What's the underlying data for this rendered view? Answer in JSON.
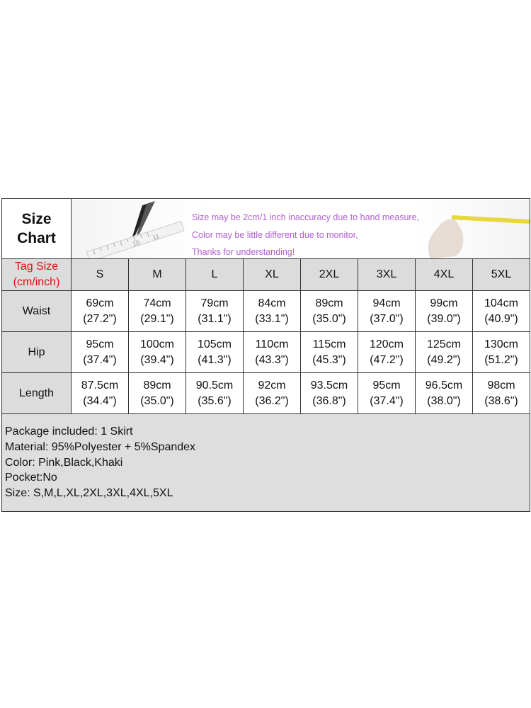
{
  "header": {
    "title_line1": "Size",
    "title_line2": "Chart",
    "notes": [
      "Size may be 2cm/1 inch inaccuracy due to hand measure,",
      "Color may be little different due to monitor,",
      "Thanks for understanding!"
    ],
    "ruler_marks": [
      "10",
      "11"
    ]
  },
  "table": {
    "tag_label_line1": "Tag Size",
    "tag_label_line2": "(cm/inch)",
    "sizes": [
      "S",
      "M",
      "L",
      "XL",
      "2XL",
      "3XL",
      "4XL",
      "5XL"
    ],
    "rows": [
      {
        "label": "Waist",
        "cm": [
          "69cm",
          "74cm",
          "79cm",
          "84cm",
          "89cm",
          "94cm",
          "99cm",
          "104cm"
        ],
        "inch": [
          "(27.2\")",
          "(29.1\")",
          "(31.1\")",
          "(33.1\")",
          "(35.0\")",
          "(37.0\")",
          "(39.0\")",
          "(40.9\")"
        ]
      },
      {
        "label": "Hip",
        "cm": [
          "95cm",
          "100cm",
          "105cm",
          "110cm",
          "115cm",
          "120cm",
          "125cm",
          "130cm"
        ],
        "inch": [
          "(37.4\")",
          "(39.4\")",
          "(41.3\")",
          "(43.3\")",
          "(45.3\")",
          "(47.2\")",
          "(49.2\")",
          "(51.2\")"
        ]
      },
      {
        "label": "Length",
        "cm": [
          "87.5cm",
          "89cm",
          "90.5cm",
          "92cm",
          "93.5cm",
          "95cm",
          "96.5cm",
          "98cm"
        ],
        "inch": [
          "(34.4\")",
          "(35.0\")",
          "(35.6\")",
          "(36.2\")",
          "(36.8\")",
          "(37.4\")",
          "(38.0\")",
          "(38.6\")"
        ]
      }
    ]
  },
  "info": [
    "Package included: 1 Skirt",
    "Material: 95%Polyester + 5%Spandex",
    "Color: Pink,Black,Khaki",
    "Pocket:No",
    "Size: S,M,L,XL,2XL,3XL,4XL,5XL"
  ],
  "colors": {
    "tag_label": "#e01010",
    "notes": "#b060d0",
    "cell_gray": "#dcdcdc"
  }
}
